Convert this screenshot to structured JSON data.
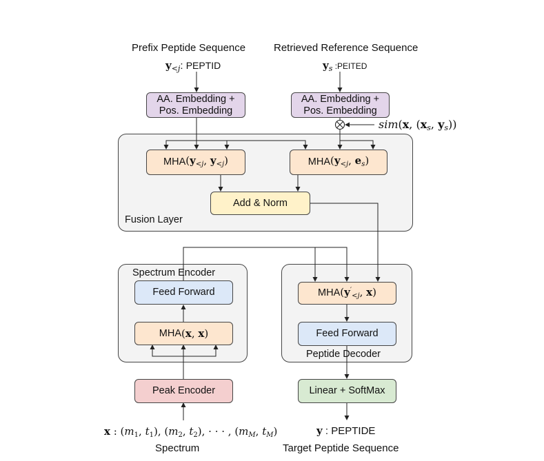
{
  "inputs": {
    "prefix_title": "Prefix Peptide Sequence",
    "prefix_seq": "PEPTID",
    "reference_title": "Retrieved Reference Sequence",
    "reference_seq": "PEITED",
    "spectrum_title": "Spectrum",
    "target_title": "Target Peptide Sequence",
    "target_seq": "PEPTIDE"
  },
  "blocks": {
    "embed_prefix_line1": "AA. Embedding +",
    "embed_prefix_line2": "Pos. Embedding",
    "embed_ref_line1": "AA. Embedding +",
    "embed_ref_line2": "Pos. Embedding",
    "mha_prefix": "MHA",
    "mha_cross": "MHA",
    "add_norm": "Add & Norm",
    "fusion_layer": "Fusion Layer",
    "spectrum_encoder": "Spectrum Encoder",
    "enc_feed_forward": "Feed Forward",
    "enc_mha": "MHA",
    "peak_encoder": "Peak Encoder",
    "dec_mha": "MHA",
    "dec_feed_forward": "Feed Forward",
    "peptide_decoder": "Peptide Decoder",
    "linear_softmax": "Linear + SoftMax"
  },
  "colors": {
    "embedding": "#e3d5ea",
    "mha": "#fde6cf",
    "add_norm": "#fff2c9",
    "feed_forward": "#dce8f8",
    "peak_encoder": "#f4cfcf",
    "linear_softmax": "#d8ead2",
    "panel": "#f3f3f3"
  }
}
